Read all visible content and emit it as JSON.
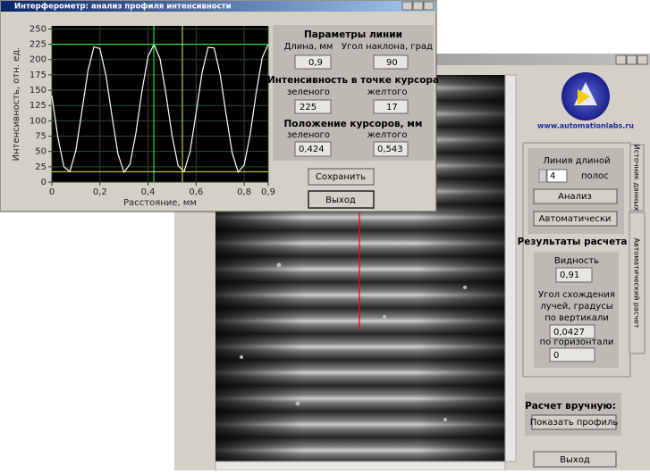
{
  "front_window": {
    "title": "Интерферометр: анализ профиля интенсивности"
  },
  "chart_data": {
    "type": "line",
    "ylabel": "Интенсивность, отн. ед.",
    "xlabel": "Расстояние, мм",
    "x": [
      0,
      0.025,
      0.05,
      0.075,
      0.1,
      0.125,
      0.15,
      0.175,
      0.2,
      0.225,
      0.25,
      0.275,
      0.3,
      0.325,
      0.35,
      0.375,
      0.4,
      0.425,
      0.45,
      0.475,
      0.5,
      0.525,
      0.55,
      0.575,
      0.6,
      0.625,
      0.65,
      0.675,
      0.7,
      0.725,
      0.75,
      0.775,
      0.8,
      0.825,
      0.85,
      0.875,
      0.9
    ],
    "values": [
      141,
      73,
      25,
      17,
      52,
      116,
      181,
      221,
      218,
      174,
      108,
      46,
      16,
      29,
      81,
      149,
      205,
      225,
      201,
      143,
      76,
      27,
      17,
      50,
      113,
      179,
      220,
      219,
      176,
      110,
      48,
      16,
      28,
      78,
      146,
      203,
      225
    ],
    "color": "#ffffff",
    "background": "#000000",
    "grid": true,
    "grid_color": "#2e4a2e",
    "xlim": [
      0,
      0.9
    ],
    "ylim": [
      0,
      255
    ],
    "xticks": [
      0,
      {
        "value": 0.2,
        "label": "0,2"
      },
      {
        "value": 0.4,
        "label": "0,4"
      },
      {
        "value": 0.6,
        "label": "0,6"
      },
      {
        "value": 0.8,
        "label": "0,8"
      },
      {
        "value": 0.9,
        "label": "0,9"
      }
    ],
    "yticks": [
      0,
      25,
      50,
      75,
      100,
      125,
      150,
      175,
      200,
      225,
      250
    ],
    "cursors": [
      {
        "color": "#3cff3c",
        "x": 0.424,
        "y": 225
      },
      {
        "color": "#e8e84a",
        "x": 0.543,
        "y": 17
      }
    ]
  },
  "params_panel": {
    "line_title": "Параметры линии",
    "length_label": "Длина, мм",
    "angle_label": "Угол наклона, град",
    "length": "0,9",
    "angle": "90",
    "intensity_title": "Интенсивность в точке курсора",
    "green_label": "зеленого",
    "yellow_label": "желтого",
    "green_intensity": "225",
    "yellow_intensity": "17",
    "position_title": "Положение курсоров, мм",
    "green_label2": "зеленого",
    "yellow_label2": "желтого",
    "green_position": "0,424",
    "yellow_position": "0,543"
  },
  "front_buttons": {
    "save": "Сохранить",
    "exit": "Выход"
  },
  "main_window": {
    "site": "www.automationlabs.ru",
    "tab_source": "Источник данных",
    "tab_auto": "Автоматический расчет",
    "line_length": "Линия длиной",
    "stripes_value": "4",
    "stripes": "полос",
    "analyze": "Анализ",
    "automatic": "Автоматически",
    "results_title": "Результаты расчета",
    "visibility_label": "Видность",
    "visibility": "0,91",
    "angle_label1": "Угол схождения",
    "angle_label2": "лучей, градусы",
    "vertical_label": "по вертикали",
    "vertical": "0,0427",
    "horizontal_label": "по горизонтали",
    "horizontal": "0",
    "manual_title": "Расчет вручную:",
    "show_profile": "Показать профиль",
    "exit": "Выход"
  }
}
